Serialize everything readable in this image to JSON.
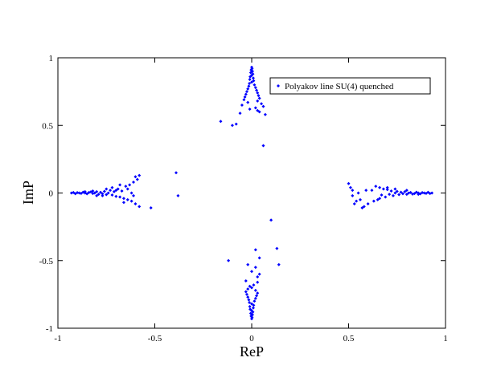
{
  "chart_data": {
    "type": "scatter",
    "title": "",
    "xlabel": "ReP",
    "ylabel": "ImP",
    "xlim": [
      -1,
      1
    ],
    "ylim": [
      -1,
      1
    ],
    "xticks": [
      -1,
      -0.5,
      0,
      0.5,
      1
    ],
    "yticks": [
      -1,
      -0.5,
      0,
      0.5,
      1
    ],
    "xtick_labels": [
      "-1",
      "-0.5",
      "0",
      "0.5",
      "1"
    ],
    "ytick_labels": [
      "-1",
      "-0.5",
      "0",
      "0.5",
      "1"
    ],
    "grid": false,
    "legend_position": "top-right",
    "series": [
      {
        "name": "Polyakov line SU(4) quenched",
        "color": "#0000ff",
        "marker": "diamond",
        "points": [
          [
            -0.93,
            0.0
          ],
          [
            -0.92,
            0.004
          ],
          [
            -0.91,
            -0.005
          ],
          [
            -0.9,
            0.003
          ],
          [
            -0.89,
            0.0
          ],
          [
            -0.88,
            -0.003
          ],
          [
            -0.87,
            0.006
          ],
          [
            -0.86,
            0.0
          ],
          [
            -0.85,
            -0.006
          ],
          [
            -0.84,
            0.004
          ],
          [
            -0.83,
            0.008
          ],
          [
            -0.82,
            -0.004
          ],
          [
            -0.81,
            0.0
          ],
          [
            -0.8,
            0.01
          ],
          [
            -0.79,
            -0.01
          ],
          [
            -0.78,
            0.005
          ],
          [
            -0.77,
            -0.006
          ],
          [
            -0.76,
            0.012
          ],
          [
            -0.75,
            -0.012
          ],
          [
            -0.74,
            0.0
          ],
          [
            -0.73,
            0.02
          ],
          [
            -0.72,
            -0.015
          ],
          [
            -0.71,
            0.01
          ],
          [
            -0.7,
            -0.025
          ],
          [
            -0.69,
            0.03
          ],
          [
            -0.68,
            -0.03
          ],
          [
            -0.67,
            0.015
          ],
          [
            -0.66,
            -0.04
          ],
          [
            -0.65,
            0.05
          ],
          [
            -0.64,
            -0.05
          ],
          [
            -0.63,
            0.06
          ],
          [
            -0.62,
            -0.06
          ],
          [
            -0.61,
            0.08
          ],
          [
            -0.6,
            -0.08
          ],
          [
            -0.59,
            0.1
          ],
          [
            -0.58,
            -0.1
          ],
          [
            -0.6,
            0.12
          ],
          [
            -0.58,
            0.13
          ],
          [
            -0.68,
            0.06
          ],
          [
            -0.66,
            -0.07
          ],
          [
            -0.64,
            0.03
          ],
          [
            -0.62,
            0.0
          ],
          [
            -0.7,
            0.02
          ],
          [
            -0.75,
            0.03
          ],
          [
            -0.8,
            -0.02
          ],
          [
            -0.86,
            0.01
          ],
          [
            -0.82,
            0.015
          ],
          [
            -0.77,
            -0.02
          ],
          [
            -0.72,
            0.04
          ],
          [
            -0.61,
            -0.02
          ],
          [
            -0.52,
            -0.11
          ],
          [
            -0.39,
            0.15
          ],
          [
            -0.38,
            -0.02
          ],
          [
            0.93,
            0.0
          ],
          [
            0.92,
            -0.004
          ],
          [
            0.91,
            0.005
          ],
          [
            0.9,
            -0.003
          ],
          [
            0.89,
            0.0
          ],
          [
            0.88,
            0.003
          ],
          [
            0.87,
            -0.006
          ],
          [
            0.86,
            0.0
          ],
          [
            0.85,
            0.006
          ],
          [
            0.84,
            -0.004
          ],
          [
            0.83,
            -0.008
          ],
          [
            0.82,
            0.004
          ],
          [
            0.81,
            0.0
          ],
          [
            0.8,
            -0.01
          ],
          [
            0.79,
            0.01
          ],
          [
            0.78,
            -0.005
          ],
          [
            0.77,
            0.006
          ],
          [
            0.76,
            -0.012
          ],
          [
            0.75,
            0.012
          ],
          [
            0.74,
            0.0
          ],
          [
            0.73,
            -0.02
          ],
          [
            0.72,
            0.015
          ],
          [
            0.71,
            -0.01
          ],
          [
            0.7,
            0.025
          ],
          [
            0.69,
            -0.03
          ],
          [
            0.68,
            0.03
          ],
          [
            0.67,
            -0.015
          ],
          [
            0.66,
            0.04
          ],
          [
            0.65,
            -0.05
          ],
          [
            0.64,
            0.05
          ],
          [
            0.63,
            -0.06
          ],
          [
            0.62,
            0.02
          ],
          [
            0.6,
            -0.08
          ],
          [
            0.58,
            -0.1
          ],
          [
            0.56,
            -0.05
          ],
          [
            0.55,
            0.0
          ],
          [
            0.53,
            -0.08
          ],
          [
            0.52,
            0.02
          ],
          [
            0.51,
            0.04
          ],
          [
            0.5,
            0.07
          ],
          [
            0.52,
            -0.02
          ],
          [
            0.54,
            -0.06
          ],
          [
            0.57,
            -0.11
          ],
          [
            0.59,
            0.02
          ],
          [
            0.66,
            -0.04
          ],
          [
            0.7,
            0.04
          ],
          [
            0.74,
            0.03
          ],
          [
            0.8,
            0.02
          ],
          [
            0.86,
            -0.01
          ],
          [
            0.0,
            0.93
          ],
          [
            0.002,
            0.92
          ],
          [
            -0.003,
            0.91
          ],
          [
            0.004,
            0.9
          ],
          [
            -0.005,
            0.89
          ],
          [
            0.006,
            0.88
          ],
          [
            0.0,
            0.87
          ],
          [
            -0.008,
            0.86
          ],
          [
            0.008,
            0.85
          ],
          [
            -0.01,
            0.84
          ],
          [
            0.01,
            0.83
          ],
          [
            0.0,
            0.82
          ],
          [
            -0.012,
            0.81
          ],
          [
            0.014,
            0.8
          ],
          [
            -0.015,
            0.79
          ],
          [
            0.02,
            0.78
          ],
          [
            -0.02,
            0.77
          ],
          [
            0.025,
            0.76
          ],
          [
            -0.025,
            0.75
          ],
          [
            0.03,
            0.74
          ],
          [
            -0.03,
            0.73
          ],
          [
            0.035,
            0.72
          ],
          [
            -0.035,
            0.71
          ],
          [
            0.04,
            0.7
          ],
          [
            -0.04,
            0.69
          ],
          [
            0.03,
            0.68
          ],
          [
            -0.02,
            0.67
          ],
          [
            0.05,
            0.66
          ],
          [
            -0.05,
            0.65
          ],
          [
            0.06,
            0.64
          ],
          [
            0.02,
            0.63
          ],
          [
            -0.01,
            0.62
          ],
          [
            0.03,
            0.61
          ],
          [
            0.04,
            0.6
          ],
          [
            -0.06,
            0.59
          ],
          [
            0.07,
            0.58
          ],
          [
            -0.16,
            0.53
          ],
          [
            -0.1,
            0.5
          ],
          [
            -0.08,
            0.51
          ],
          [
            0.06,
            0.35
          ],
          [
            0.0,
            -0.93
          ],
          [
            0.002,
            -0.92
          ],
          [
            -0.003,
            -0.91
          ],
          [
            0.004,
            -0.9
          ],
          [
            -0.005,
            -0.89
          ],
          [
            0.006,
            -0.88
          ],
          [
            0.0,
            -0.87
          ],
          [
            -0.008,
            -0.86
          ],
          [
            0.008,
            -0.85
          ],
          [
            -0.01,
            -0.84
          ],
          [
            0.01,
            -0.83
          ],
          [
            0.0,
            -0.82
          ],
          [
            -0.012,
            -0.81
          ],
          [
            0.014,
            -0.8
          ],
          [
            -0.015,
            -0.79
          ],
          [
            0.02,
            -0.78
          ],
          [
            -0.02,
            -0.77
          ],
          [
            0.025,
            -0.76
          ],
          [
            -0.025,
            -0.75
          ],
          [
            0.03,
            -0.74
          ],
          [
            -0.03,
            -0.73
          ],
          [
            0.02,
            -0.72
          ],
          [
            -0.02,
            -0.71
          ],
          [
            0.0,
            -0.7
          ],
          [
            -0.01,
            -0.69
          ],
          [
            0.01,
            -0.68
          ],
          [
            0.03,
            -0.66
          ],
          [
            -0.03,
            -0.65
          ],
          [
            0.03,
            -0.62
          ],
          [
            0.04,
            -0.6
          ],
          [
            0.0,
            -0.58
          ],
          [
            0.02,
            -0.55
          ],
          [
            -0.02,
            -0.53
          ],
          [
            0.04,
            -0.48
          ],
          [
            0.02,
            -0.42
          ],
          [
            -0.12,
            -0.5
          ],
          [
            0.14,
            -0.53
          ],
          [
            0.13,
            -0.41
          ],
          [
            0.1,
            -0.2
          ]
        ]
      }
    ]
  }
}
